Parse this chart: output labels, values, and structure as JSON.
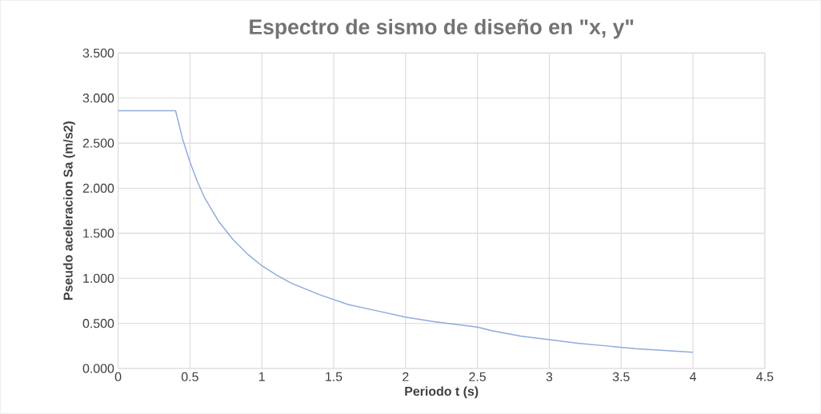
{
  "chart_data": {
    "type": "line",
    "title": "Espectro de sismo de diseño en \"x, y\"",
    "xlabel": "Periodo t (s)",
    "ylabel": "Pseudo aceleracion Sa (m/s2)",
    "x": [
      0,
      0.1,
      0.2,
      0.3,
      0.4,
      0.45,
      0.5,
      0.55,
      0.6,
      0.7,
      0.8,
      0.9,
      1.0,
      1.1,
      1.2,
      1.4,
      1.6,
      1.8,
      2.0,
      2.2,
      2.4,
      2.5,
      2.6,
      2.8,
      3.0,
      3.2,
      3.4,
      3.6,
      3.8,
      4.0
    ],
    "series": [
      {
        "color": "#8faadc",
        "values": [
          2.86,
          2.86,
          2.86,
          2.86,
          2.86,
          2.54,
          2.29,
          2.08,
          1.9,
          1.63,
          1.43,
          1.27,
          1.14,
          1.04,
          0.95,
          0.82,
          0.71,
          0.64,
          0.57,
          0.52,
          0.48,
          0.46,
          0.42,
          0.36,
          0.32,
          0.28,
          0.25,
          0.22,
          0.2,
          0.18
        ]
      }
    ],
    "xlim": [
      0,
      4.5
    ],
    "ylim": [
      0,
      3.5
    ],
    "xticks": [
      0,
      0.5,
      1,
      1.5,
      2,
      2.5,
      3,
      3.5,
      4,
      4.5
    ],
    "yticks": [
      {
        "value": 0,
        "label": "0.000"
      },
      {
        "value": 0.5,
        "label": "0.500"
      },
      {
        "value": 1,
        "label": "1.000"
      },
      {
        "value": 1.5,
        "label": "1.500"
      },
      {
        "value": 2,
        "label": "2.000"
      },
      {
        "value": 2.5,
        "label": "2.500"
      },
      {
        "value": 3,
        "label": "3.000"
      },
      {
        "value": 3.5,
        "label": "3.500"
      }
    ],
    "grid": true,
    "legend": false,
    "marker": "none",
    "line_style": "solid"
  }
}
